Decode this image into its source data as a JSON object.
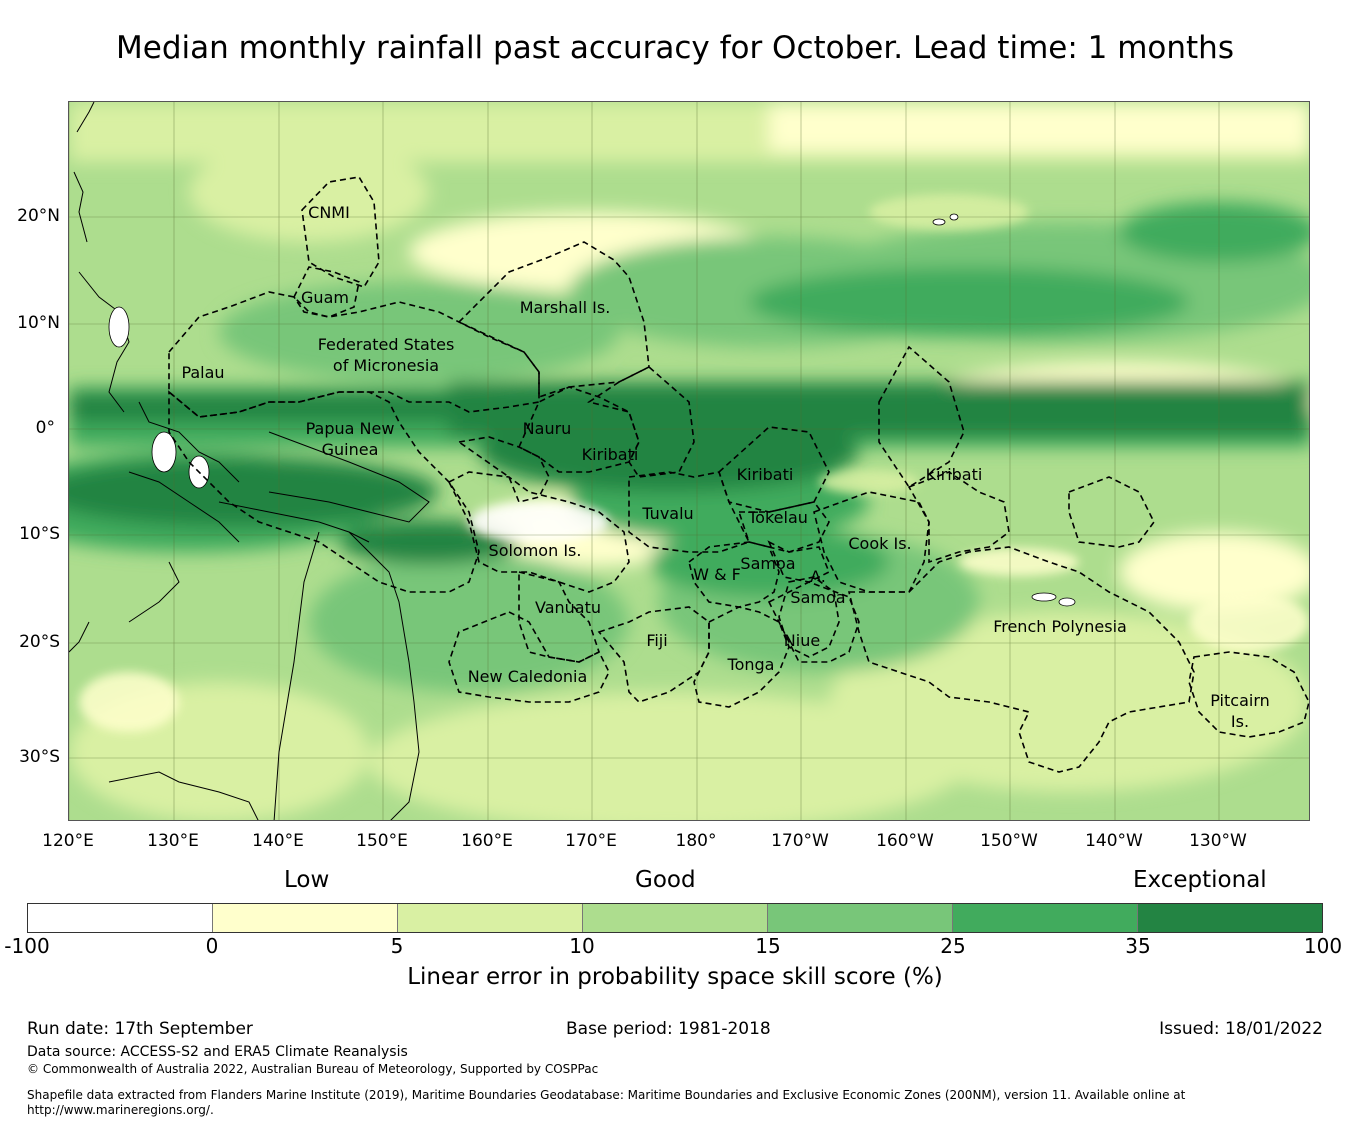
{
  "title": "Median monthly rainfall past accuracy for October. Lead time: 1 months",
  "map": {
    "lat_ticks": [
      "20°N",
      "10°N",
      "0°",
      "10°S",
      "20°S",
      "30°S"
    ],
    "lon_ticks": [
      "120°E",
      "130°E",
      "140°E",
      "150°E",
      "160°E",
      "170°E",
      "180°",
      "170°W",
      "160°W",
      "150°W",
      "140°W",
      "130°W"
    ],
    "regions": [
      {
        "name": "cnmi",
        "label": "CNMI"
      },
      {
        "name": "guam",
        "label": "Guam"
      },
      {
        "name": "marshall",
        "label": "Marshall Is."
      },
      {
        "name": "fsm",
        "label": "Federated States\nof Micronesia"
      },
      {
        "name": "palau",
        "label": "Palau"
      },
      {
        "name": "png",
        "label": "Papua New\nGuinea"
      },
      {
        "name": "nauru",
        "label": "Nauru"
      },
      {
        "name": "kiribati-w",
        "label": "Kiribati"
      },
      {
        "name": "kiribati-c",
        "label": "Kiribati"
      },
      {
        "name": "kiribati-e",
        "label": "Kiribati"
      },
      {
        "name": "tuvalu",
        "label": "Tuvalu"
      },
      {
        "name": "tokelau",
        "label": "Tokelau"
      },
      {
        "name": "cook",
        "label": "Cook Is."
      },
      {
        "name": "solomon",
        "label": "Solomon Is."
      },
      {
        "name": "samoa",
        "label": "Samoa"
      },
      {
        "name": "wf",
        "label": "W & F"
      },
      {
        "name": "asamoa",
        "label": "A.\nSamoa"
      },
      {
        "name": "vanuatu",
        "label": "Vanuatu"
      },
      {
        "name": "fiji",
        "label": "Fiji"
      },
      {
        "name": "niue",
        "label": "Niue"
      },
      {
        "name": "tonga",
        "label": "Tonga"
      },
      {
        "name": "fp",
        "label": "French Polynesia"
      },
      {
        "name": "newcal",
        "label": "New Caledonia"
      },
      {
        "name": "pitcairn",
        "label": "Pitcairn\nIs."
      }
    ]
  },
  "legend": {
    "categories": {
      "low": "Low",
      "good": "Good",
      "exceptional": "Exceptional"
    },
    "colors": [
      "#ffffff",
      "#ffffcc",
      "#d9f0a3",
      "#addd8e",
      "#78c679",
      "#41ab5d",
      "#238443"
    ],
    "ticks": [
      "-100",
      "0",
      "5",
      "10",
      "15",
      "25",
      "35",
      "100"
    ],
    "title": "Linear error in probability space skill score (%)"
  },
  "footer": {
    "run_date": "Run date: 17th September",
    "base_period": "Base period: 1981-2018",
    "issued": "Issued: 18/01/2022",
    "data_source": "Data source: ACCESS-S2 and ERA5 Climate Reanalysis",
    "copyright": "© Commonwealth of Australia 2022, Australian Bureau of Meteorology, Supported by COSPPac",
    "shapefile": "Shapefile data extracted from Flanders Marine Institute (2019), Maritime Boundaries Geodatabase: Maritime Boundaries and Exclusive Economic Zones (200NM), version 11. Available online at http://www.marineregions.org/."
  }
}
